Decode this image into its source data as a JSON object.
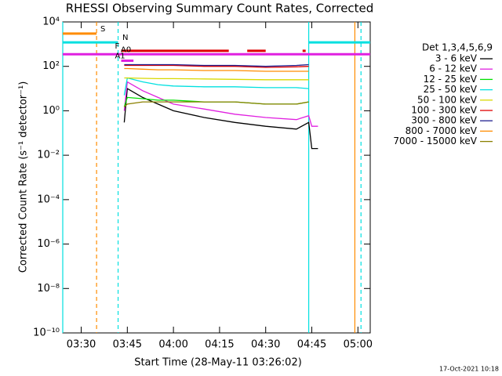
{
  "chart_data": {
    "type": "line",
    "title": "RHESSI Observing Summary Count Rates, Corrected",
    "x_label": "Start Time (28-May-11 03:26:02)",
    "y_label": "Corrected Count Rate (s⁻¹ detector⁻¹)",
    "footer": "17-Oct-2021 10:18",
    "legend_title": "Det 1,3,4,5,6,9",
    "log_y": true,
    "xlim": [
      "03:24",
      "05:04"
    ],
    "xticks": [
      "03:30",
      "03:45",
      "04:00",
      "04:15",
      "04:30",
      "04:45",
      "05:00"
    ],
    "ylim": [
      1e-10,
      10000
    ],
    "yticks": [
      {
        "value": 1e-10,
        "label": "10⁻¹⁰"
      },
      {
        "value": 1e-08,
        "label": "10⁻⁸"
      },
      {
        "value": 1e-06,
        "label": "10⁻⁶"
      },
      {
        "value": 0.0001,
        "label": "10⁻⁴"
      },
      {
        "value": 0.01,
        "label": "10⁻²"
      },
      {
        "value": 1,
        "label": "10⁰"
      },
      {
        "value": 100,
        "label": "10²"
      },
      {
        "value": 10000,
        "label": "10⁴"
      }
    ],
    "x": [
      "03:44",
      "03:45",
      "03:50",
      "03:55",
      "04:00",
      "04:10",
      "04:20",
      "04:30",
      "04:40",
      "04:44",
      "04:45",
      "04:47"
    ],
    "series": [
      {
        "name": "3 - 6 keV",
        "color": "#000000",
        "values": [
          0.3,
          10,
          4,
          2,
          1.0,
          0.5,
          0.3,
          0.2,
          0.15,
          0.3,
          0.02,
          0.02
        ]
      },
      {
        "name": "6 - 12 keV",
        "color": "#e020e0",
        "values": [
          1,
          20,
          8,
          4,
          2,
          1.2,
          0.7,
          0.5,
          0.4,
          0.6,
          0.2,
          0.2
        ]
      },
      {
        "name": "12 - 25 keV",
        "color": "#00e000",
        "values": [
          1.5,
          4,
          3.5,
          3,
          3,
          2.5,
          2.5,
          2,
          2,
          2.5,
          null,
          null
        ]
      },
      {
        "name": "25 - 50 keV",
        "color": "#00e0e0",
        "values": [
          5,
          30,
          20,
          15,
          13,
          12,
          12,
          11,
          11,
          10,
          null,
          null
        ]
      },
      {
        "name": "50 - 100 keV",
        "color": "#d8d800",
        "values": [
          30,
          30,
          29,
          28,
          28,
          27,
          26,
          25,
          25,
          25,
          null,
          null
        ]
      },
      {
        "name": "100 - 300 keV",
        "color": "#e00000",
        "values": [
          110,
          110,
          110,
          110,
          110,
          100,
          100,
          90,
          95,
          100,
          null,
          null
        ]
      },
      {
        "name": "300 - 800 keV",
        "color": "#202090",
        "values": [
          120,
          120,
          120,
          120,
          120,
          110,
          110,
          100,
          110,
          120,
          null,
          null
        ]
      },
      {
        "name": "800 - 7000 keV",
        "color": "#ff8c00",
        "values": [
          80,
          80,
          75,
          70,
          70,
          65,
          65,
          60,
          60,
          60,
          null,
          null
        ]
      },
      {
        "name": "7000 - 15000 keV",
        "color": "#8b8000",
        "values": [
          1.5,
          2,
          2.5,
          2.5,
          2.5,
          2.5,
          2.5,
          2,
          2,
          2.5,
          null,
          null
        ]
      }
    ],
    "flags": [
      {
        "label": "S",
        "color": "#ff8c00",
        "y": 3000,
        "ranges": [
          [
            "03:24",
            "03:35"
          ]
        ]
      },
      {
        "label": "N",
        "color": "#00e0e0",
        "y": 1200,
        "ranges": [
          [
            "03:24",
            "03:42"
          ],
          [
            "04:44",
            "05:04"
          ]
        ]
      },
      {
        "label": "F",
        "color": "#e00000",
        "y": 500,
        "ranges": [
          [
            "03:43",
            "04:18"
          ],
          [
            "04:24",
            "04:30"
          ],
          [
            "04:42",
            "04:43"
          ]
        ]
      },
      {
        "label": "A0",
        "color": "#e020e0",
        "y": 350,
        "ranges": [
          [
            "03:24",
            "05:04"
          ]
        ]
      },
      {
        "label": "A1",
        "color": "#e020e0",
        "y": 180,
        "ranges": [
          [
            "03:43",
            "03:47"
          ]
        ]
      }
    ],
    "vlines": [
      {
        "x": "03:24",
        "color": "#00e0e0",
        "dashed": false
      },
      {
        "x": "03:35",
        "color": "#ff8c00",
        "dashed": true
      },
      {
        "x": "03:42",
        "color": "#00e0e0",
        "dashed": true
      },
      {
        "x": "04:44",
        "color": "#00e0e0",
        "dashed": false
      },
      {
        "x": "04:59",
        "color": "#ff8c00",
        "dashed": false
      },
      {
        "x": "05:01",
        "color": "#00e0e0",
        "dashed": true
      }
    ]
  }
}
